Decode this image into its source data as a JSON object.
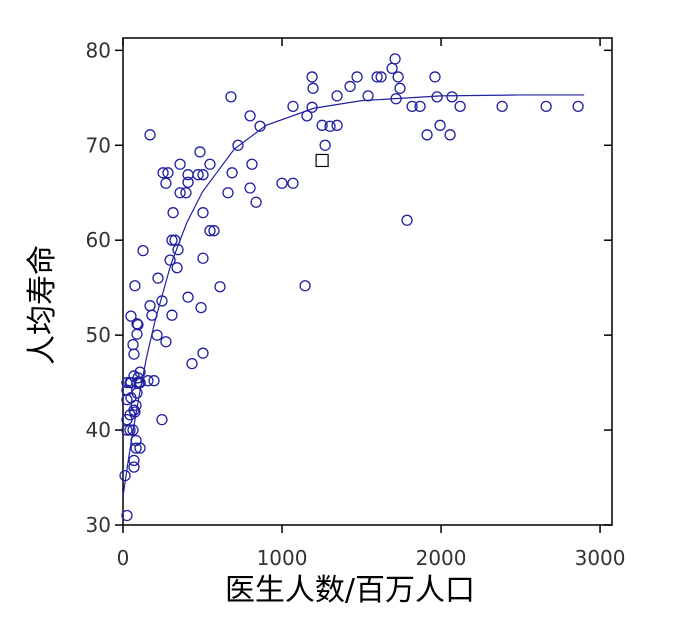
{
  "chart_data": {
    "type": "scatter",
    "x_label": "医生人数/百万人口",
    "y_label": "人均寿命",
    "xlim": [
      0,
      3075
    ],
    "ylim": [
      30,
      81.3
    ],
    "xticks": [
      0,
      1000,
      2000,
      3000
    ],
    "yticks": [
      30,
      40,
      50,
      60,
      70,
      80
    ],
    "color": "#2020a0",
    "x": [
      25,
      13,
      25,
      44,
      63,
      25,
      44,
      25,
      50,
      25,
      50,
      44,
      25,
      69,
      69,
      63,
      50,
      75,
      88,
      88,
      94,
      107,
      94,
      107,
      69,
      75,
      82,
      88,
      88,
      101,
      69,
      69,
      82,
      82,
      107,
      107,
      157,
      195,
      126,
      170,
      182,
      214,
      170,
      220,
      245,
      270,
      245,
      252,
      283,
      270,
      296,
      308,
      308,
      315,
      327,
      340,
      346,
      359,
      359,
      396,
      409,
      434,
      409,
      409,
      472,
      484,
      503,
      547,
      491,
      503,
      503,
      503,
      547,
      572,
      610,
      660,
      686,
      679,
      723,
      799,
      811,
      799,
      837,
      862,
      1000,
      1069,
      1069,
      1145,
      1157,
      1189,
      1195,
      1189,
      1252,
      1271,
      1302,
      1346,
      1346,
      1428,
      1472,
      1541,
      1598,
      1623,
      1692,
      1711,
      1730,
      1717,
      1742,
      1786,
      1818,
      1868,
      1912,
      1962,
      1975,
      1994,
      2057,
      2069,
      2120,
      2384,
      2661,
      2862
    ],
    "y": [
      31,
      35.2,
      40,
      40,
      40,
      41.1,
      41.6,
      43.2,
      43.4,
      44.2,
      45,
      45,
      45,
      45.7,
      48,
      49,
      52,
      55.2,
      50.1,
      51.2,
      51.1,
      46.1,
      45.5,
      45,
      42.1,
      41.9,
      42.6,
      43.9,
      45,
      45,
      36.1,
      36.8,
      38.9,
      38.1,
      38.1,
      45,
      45.2,
      45.2,
      58.9,
      53.1,
      52.1,
      50,
      71.1,
      56,
      53.6,
      49.3,
      41.1,
      67.1,
      67.1,
      66,
      57.9,
      52.1,
      60,
      62.9,
      60,
      57.1,
      59,
      65,
      68,
      65,
      54,
      47,
      66.1,
      66.9,
      66.9,
      69.3,
      66.9,
      68,
      52.9,
      48.1,
      62.9,
      58.1,
      61,
      61,
      55.1,
      65,
      67.1,
      75.1,
      70,
      73.1,
      68,
      65.5,
      64,
      72,
      66,
      66,
      74.1,
      55.2,
      73.1,
      74,
      76,
      77.2,
      72.1,
      70,
      72,
      72.1,
      75.2,
      76.2,
      77.2,
      75.2,
      77.2,
      77.2,
      78.1,
      79.1,
      77.2,
      74.9,
      76,
      62.1,
      74.1,
      74.1,
      71.1,
      77.2,
      75.1,
      72.1,
      71.1,
      75.1,
      74.1,
      74.1,
      74.1,
      74.1
    ],
    "highlight": {
      "x": [
        1252
      ],
      "y": [
        68.4
      ]
    },
    "fit": {
      "x": [
        0,
        25,
        50,
        100,
        150,
        200,
        300,
        400,
        500,
        700,
        900,
        1200,
        1500,
        2000,
        2500,
        2900
      ],
      "y": [
        33,
        35.9,
        38.6,
        43.5,
        47.8,
        51.4,
        57.4,
        61.8,
        65.1,
        69.6,
        72.1,
        73.9,
        74.7,
        75.2,
        75.3,
        75.3
      ]
    }
  }
}
